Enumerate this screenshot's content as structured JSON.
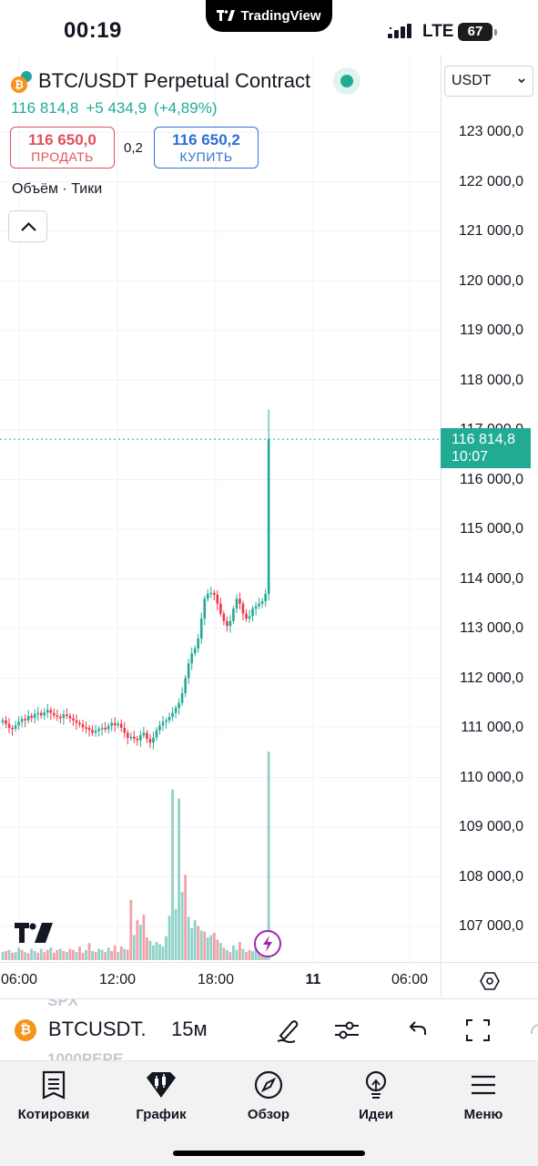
{
  "status_bar": {
    "time": "00:19",
    "app_pill": "TradingView",
    "network": "LTE",
    "battery": "67"
  },
  "symbol": {
    "title": "BTC/USDT Perpetual Contract",
    "last_price": "116 814,8",
    "change": "+5 434,9",
    "change_pct": "(+4,89%)",
    "sell": {
      "price": "116 650,0",
      "label": "ПРОДАТЬ"
    },
    "spread": "0,2",
    "buy": {
      "price": "116 650,2",
      "label": "КУПИТЬ"
    },
    "indicator_legend": "Объём · Тики"
  },
  "price_axis": {
    "currency": "USDT",
    "labels": [
      "123 000,0",
      "122 000,0",
      "121 000,0",
      "120 000,0",
      "119 000,0",
      "118 000,0",
      "117 000,0",
      "116 000,0",
      "115 000,0",
      "114 000,0",
      "113 000,0",
      "112 000,0",
      "111 000,0",
      "110 000,0",
      "109 000,0",
      "108 000,0",
      "107 000,0"
    ],
    "last_tag": {
      "price": "116 814,8",
      "countdown": "10:07"
    }
  },
  "time_axis": {
    "labels": [
      {
        "text": "06:00",
        "bold": false
      },
      {
        "text": "12:00",
        "bold": false
      },
      {
        "text": "18:00",
        "bold": false
      },
      {
        "text": "11",
        "bold": true
      },
      {
        "text": "06:00",
        "bold": false
      }
    ]
  },
  "colors": {
    "up": "#22ab94",
    "down": "#f23645",
    "volume_up": "#8fd3c8",
    "volume_down": "#f4a0a6",
    "accent_purple": "#9c27b0"
  },
  "chart_data": {
    "type": "candlestick",
    "interval": "15м",
    "price_range": [
      106300,
      123700
    ],
    "closes": [
      111150,
      111080,
      111000,
      110980,
      111050,
      111120,
      111180,
      111150,
      111240,
      111200,
      111280,
      111300,
      111250,
      111310,
      111360,
      111300,
      111250,
      111220,
      111200,
      111270,
      111240,
      111190,
      111150,
      111100,
      111070,
      111010,
      111000,
      110960,
      110900,
      110940,
      110980,
      111000,
      110970,
      111040,
      111100,
      111050,
      111080,
      111000,
      110900,
      110800,
      110820,
      110780,
      110750,
      110850,
      110900,
      110780,
      110700,
      110800,
      110950,
      111050,
      111120,
      111150,
      111220,
      111300,
      111400,
      111500,
      111700,
      112000,
      112300,
      112500,
      112600,
      112800,
      113200,
      113600,
      113700,
      113720,
      113680,
      113500,
      113300,
      113150,
      113050,
      113150,
      113400,
      113600,
      113500,
      113300,
      113200,
      113250,
      113400,
      113450,
      113500,
      113550,
      113700,
      116814.8
    ],
    "volume_range": [
      0,
      24000
    ],
    "volumes": [
      700,
      800,
      900,
      650,
      700,
      1100,
      900,
      700,
      600,
      1000,
      800,
      650,
      1000,
      700,
      900,
      1100,
      650,
      900,
      1000,
      800,
      700,
      1000,
      900,
      700,
      1200,
      650,
      900,
      1500,
      800,
      700,
      1000,
      900,
      700,
      1100,
      800,
      1300,
      700,
      1200,
      1000,
      900,
      5300,
      2200,
      3500,
      3100,
      4000,
      2000,
      1700,
      1300,
      1600,
      1400,
      1200,
      2100,
      3900,
      15000,
      4500,
      14200,
      6000,
      7500,
      3800,
      2800,
      3500,
      3000,
      2600,
      2500,
      2000,
      2200,
      2400,
      1800,
      1500,
      1100,
      900,
      700,
      1300,
      900,
      1600,
      1000,
      700,
      900,
      800,
      1200,
      600,
      900,
      1000,
      18300
    ],
    "volume_direction": [
      1,
      0,
      1,
      0,
      1,
      1,
      0,
      1,
      0,
      1,
      1,
      0,
      1,
      0,
      0,
      1,
      0,
      0,
      1,
      0,
      1,
      0,
      0,
      1,
      0,
      0,
      1,
      0,
      1,
      0,
      1,
      1,
      0,
      1,
      0,
      0,
      1,
      0,
      1,
      0,
      0,
      1,
      0,
      1,
      0,
      0,
      1,
      1,
      1,
      1,
      1,
      1,
      1,
      1,
      1,
      1,
      1,
      0,
      1,
      1,
      1,
      0,
      1,
      0,
      1,
      1,
      0,
      0,
      1,
      0,
      1,
      0,
      1,
      1,
      0,
      1,
      0,
      0,
      1,
      1,
      1,
      0,
      1,
      1
    ],
    "last_price": 116814.8
  },
  "toolbar": {
    "ghost_top": "SPX",
    "ghost_bottom": "1000PEPE",
    "symbol": "BTCUSDT.",
    "interval": "15м"
  },
  "bottom_nav": {
    "items": [
      {
        "label": "Котировки",
        "icon": "watchlist-icon"
      },
      {
        "label": "График",
        "icon": "chart-icon"
      },
      {
        "label": "Обзор",
        "icon": "compass-icon"
      },
      {
        "label": "Идеи",
        "icon": "lightbulb-icon"
      },
      {
        "label": "Меню",
        "icon": "menu-icon"
      }
    ]
  }
}
